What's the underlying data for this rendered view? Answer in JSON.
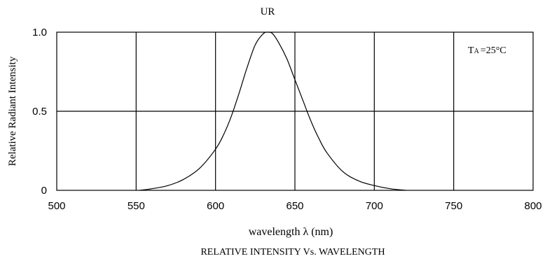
{
  "chart_data": {
    "type": "line",
    "title": "UR",
    "subtitle": "RELATIVE INTENSITY Vs. WAVELENGTH",
    "xlabel": "wavelength λ (nm)",
    "ylabel": "Relative Radiant Intensity",
    "xlim": [
      500,
      800
    ],
    "ylim": [
      0,
      1.0
    ],
    "x_ticks": [
      500,
      550,
      600,
      650,
      700,
      750,
      800
    ],
    "x_tick_labels": [
      "500",
      "550",
      "600",
      "650",
      "700",
      "750",
      "800"
    ],
    "y_ticks": [
      0,
      0.5,
      1.0
    ],
    "y_tick_labels": [
      "0",
      "0.5",
      "1.0"
    ],
    "grid": true,
    "annotation": {
      "prefix": "T",
      "subscript": "A",
      "suffix": "=25°C",
      "placement": "top-right"
    },
    "series": [
      {
        "x": [
          552,
          560,
          570,
          580,
          590,
          600,
          605,
          610,
          615,
          620,
          625,
          630,
          633,
          636,
          640,
          645,
          650,
          655,
          660,
          665,
          670,
          680,
          690,
          700,
          710,
          720
        ],
        "y": [
          0.0,
          0.01,
          0.03,
          0.07,
          0.14,
          0.26,
          0.35,
          0.47,
          0.62,
          0.78,
          0.92,
          0.99,
          1.0,
          0.99,
          0.93,
          0.83,
          0.7,
          0.57,
          0.44,
          0.33,
          0.24,
          0.12,
          0.06,
          0.03,
          0.01,
          0.0
        ]
      }
    ]
  }
}
